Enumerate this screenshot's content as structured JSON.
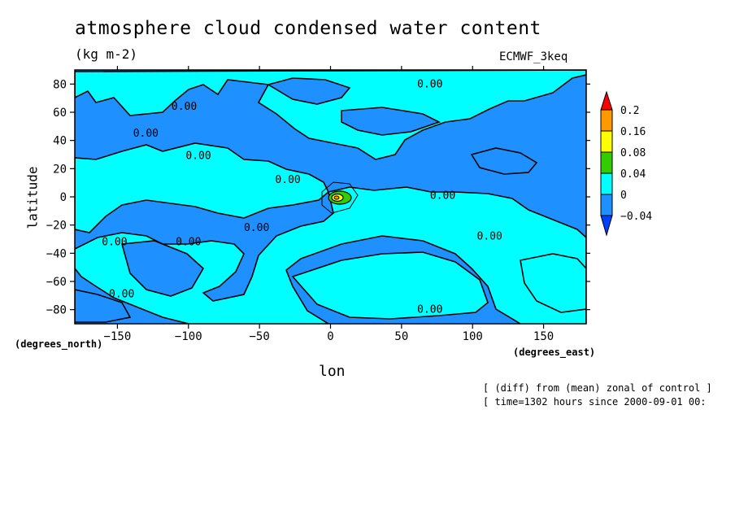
{
  "chart_data": {
    "type": "contour",
    "title": "atmosphere cloud condensed water content",
    "units": "(kg m-2)",
    "model_label": "ECMWF_3keq",
    "xlabel": "lon",
    "ylabel": "latitude",
    "x_unit": "(degrees_east)",
    "y_unit": "(degrees_north)",
    "xlim": [
      -180,
      180
    ],
    "ylim": [
      -90,
      90
    ],
    "x_ticks": [
      -150,
      -100,
      -50,
      0,
      50,
      100,
      150
    ],
    "y_ticks": [
      80,
      60,
      40,
      20,
      0,
      -20,
      -40,
      -60,
      -80
    ],
    "colorbar": {
      "levels": [
        "0.2",
        "0.16",
        "0.08",
        "0.04",
        "0",
        "-0.04"
      ],
      "colors": {
        "above_0.2": "#ff0000",
        "0.16_to_0.2": "#ff9900",
        "0.08_to_0.16": "#ffff00",
        "0.04_to_0.08": "#33cc00",
        "0_to_0.04": "#00ffff",
        "-0.04_to_0": "#1e90ff",
        "below_-0.04": "#0040ff"
      }
    },
    "contour_labels": [
      {
        "text": "0.00",
        "lon": 70,
        "lat": 80
      },
      {
        "text": "0.00",
        "lon": -103,
        "lat": 64
      },
      {
        "text": "0.00",
        "lon": -130,
        "lat": 45
      },
      {
        "text": "0.00",
        "lon": -93,
        "lat": 29
      },
      {
        "text": "0.00",
        "lon": -30,
        "lat": 12
      },
      {
        "text": "0.00",
        "lon": 79,
        "lat": 1
      },
      {
        "text": "0.00",
        "lon": -52,
        "lat": -22
      },
      {
        "text": "0.00",
        "lon": 112,
        "lat": -28
      },
      {
        "text": "0.00",
        "lon": -152,
        "lat": -32
      },
      {
        "text": "0.00",
        "lon": -100,
        "lat": -32
      },
      {
        "text": "0.00",
        "lon": -147,
        "lat": -69
      },
      {
        "text": "0.00",
        "lon": 70,
        "lat": -80
      }
    ],
    "grid": false
  },
  "notes": {
    "line1": "[ (diff) from (mean) zonal of control ]",
    "line2": "[ time=1302 hours since 2000-09-01 00:"
  }
}
